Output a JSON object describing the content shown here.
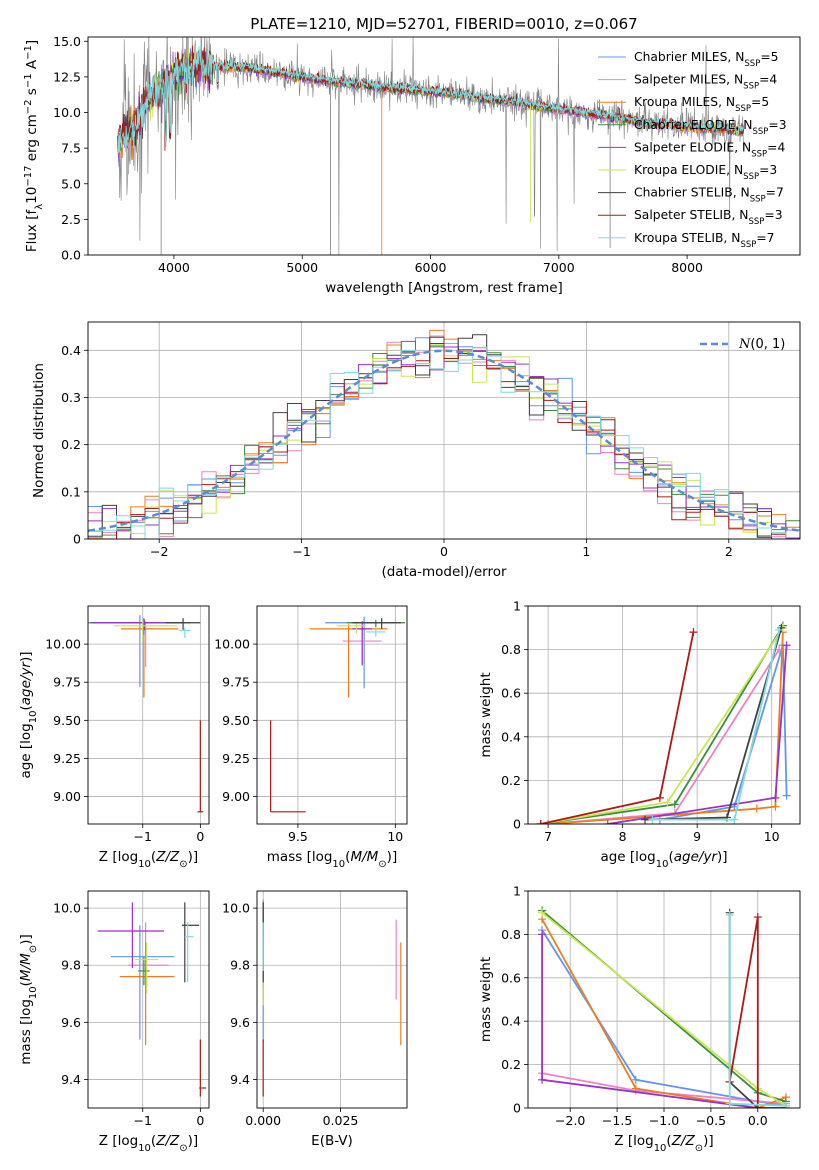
{
  "figure": {
    "title": "PLATE=1210, MJD=52701, FIBERID=0010, z=0.067"
  },
  "colors": {
    "spectrum_data": "#808080",
    "grid": "#b0b0b0",
    "normal_curve": "#5b8bd4"
  },
  "models": [
    {
      "name": "Chabrier MILES",
      "nssp": "5",
      "color": "#6495ed"
    },
    {
      "name": "Salpeter MILES",
      "nssp": "4",
      "color": "#ee82c8"
    },
    {
      "name": "Kroupa MILES",
      "nssp": "5",
      "color": "#ee7d1e"
    },
    {
      "name": "Chabrier ELODIE",
      "nssp": "3",
      "color": "#3a8f3a"
    },
    {
      "name": "Salpeter ELODIE",
      "nssp": "4",
      "color": "#9932cc"
    },
    {
      "name": "Kroupa ELODIE",
      "nssp": "3",
      "color": "#c8e650"
    },
    {
      "name": "Chabrier STELIB",
      "nssp": "7",
      "color": "#404040"
    },
    {
      "name": "Salpeter STELIB",
      "nssp": "3",
      "color": "#b01818"
    },
    {
      "name": "Kroupa STELIB",
      "nssp": "7",
      "color": "#7edcdc"
    }
  ],
  "chart_data": [
    {
      "id": "spectrum",
      "type": "line",
      "xlabel": "wavelength [Angstrom, rest frame]",
      "ylabel": "Flux [f_λ10^-17 erg cm^-2 s^-1 A^-1]",
      "xlim": [
        3330,
        8880
      ],
      "ylim": [
        0,
        15.3
      ],
      "xticks": [
        4000,
        5000,
        6000,
        7000,
        8000
      ],
      "yticks": [
        0.0,
        2.5,
        5.0,
        7.5,
        10.0,
        12.5,
        15.0
      ],
      "grid": false,
      "legend": "top-right",
      "x_range": [
        3560,
        8440
      ],
      "continuum_points": [
        [
          3560,
          8.0
        ],
        [
          3700,
          9.0
        ],
        [
          3800,
          11.0
        ],
        [
          3900,
          11.6
        ],
        [
          4000,
          12.7
        ],
        [
          4100,
          13.2
        ],
        [
          4200,
          13.3
        ],
        [
          4400,
          13.2
        ],
        [
          4600,
          13.1
        ],
        [
          4800,
          12.8
        ],
        [
          5000,
          12.5
        ],
        [
          5200,
          12.2
        ],
        [
          5400,
          12.0
        ],
        [
          5600,
          11.8
        ],
        [
          5800,
          11.6
        ],
        [
          6000,
          11.5
        ],
        [
          6200,
          11.3
        ],
        [
          6400,
          11.0
        ],
        [
          6600,
          10.8
        ],
        [
          6800,
          10.5
        ],
        [
          7000,
          10.2
        ],
        [
          7200,
          10.0
        ],
        [
          7400,
          9.7
        ],
        [
          7600,
          9.4
        ],
        [
          7800,
          9.2
        ],
        [
          8000,
          9.0
        ],
        [
          8200,
          8.9
        ],
        [
          8440,
          8.7
        ]
      ]
    },
    {
      "id": "residuals",
      "type": "histogram",
      "xlabel": "(data-model)/error",
      "ylabel": "Normed distribution",
      "xlim": [
        -2.5,
        2.5
      ],
      "ylim": [
        0,
        0.46
      ],
      "xticks": [
        -2,
        -1,
        0,
        1,
        2
      ],
      "yticks": [
        0.0,
        0.1,
        0.2,
        0.3,
        0.4
      ],
      "grid": true,
      "legend": "top-right",
      "curve_label": "N(0,1)",
      "bin_width": 0.1
    },
    {
      "id": "age_vs_Z",
      "type": "scatter",
      "xlabel": "Z [log10(Z/Z⊙)]",
      "ylabel": "age  [log10(age/yr)]",
      "xlim": [
        -1.95,
        0.15
      ],
      "ylim": [
        8.82,
        10.25
      ],
      "xticks": [
        -1,
        0
      ],
      "yticks": [
        9.0,
        9.25,
        9.5,
        9.75,
        10.0
      ],
      "ytick_labels": [
        "9.00",
        "9.25",
        "9.50",
        "9.75",
        "10.00"
      ],
      "grid": true,
      "points": [
        {
          "model": 0,
          "x": -1.05,
          "y": 10.14,
          "xerr": [
            0.9,
            0.8
          ],
          "yerr": [
            0.42,
            0.05
          ]
        },
        {
          "model": 1,
          "x": -0.95,
          "y": 10.1,
          "xerr": [
            0.1,
            0.15
          ],
          "yerr": [
            0.25,
            0.05
          ]
        },
        {
          "model": 2,
          "x": -0.98,
          "y": 10.1,
          "xerr": [
            0.4,
            0.6
          ],
          "yerr": [
            0.45,
            0.04
          ]
        },
        {
          "model": 3,
          "x": -0.97,
          "y": 10.14,
          "xerr": [
            0.95,
            0.8
          ],
          "yerr": [
            0.05,
            0.02
          ]
        },
        {
          "model": 4,
          "x": -0.98,
          "y": 10.14,
          "xerr": [
            0.9,
            0.7
          ],
          "yerr": [
            0.08,
            0.03
          ]
        },
        {
          "model": 5,
          "x": -1.0,
          "y": 10.12,
          "xerr": [
            0.5,
            0.6
          ],
          "yerr": [
            0.1,
            0.03
          ]
        },
        {
          "model": 6,
          "x": -0.3,
          "y": 10.14,
          "xerr": [
            0.3,
            0.3
          ],
          "yerr": [
            0.05,
            0.03
          ]
        },
        {
          "model": 7,
          "x": 0.0,
          "y": 8.9,
          "xerr": [
            0.05,
            0.05
          ],
          "yerr": [
            0.0,
            0.6
          ]
        },
        {
          "model": 8,
          "x": -0.27,
          "y": 10.09,
          "xerr": [
            0.1,
            0.1
          ],
          "yerr": [
            0.05,
            0.02
          ]
        }
      ]
    },
    {
      "id": "age_vs_mass",
      "type": "scatter",
      "xlabel": "mass [log10(M/M⊙)]",
      "ylabel": "",
      "xlim": [
        9.29,
        10.06
      ],
      "ylim": [
        8.82,
        10.25
      ],
      "xticks": [
        9.5,
        10.0
      ],
      "yticks": [
        9.0,
        9.25,
        9.5,
        9.75,
        10.0
      ],
      "ytick_labels": [
        "9.00",
        "9.25",
        "9.50",
        "9.75",
        "10.00"
      ],
      "grid": true,
      "points": [
        {
          "model": 0,
          "x": 9.84,
          "y": 10.14,
          "xerr": [
            0.2,
            0.15
          ],
          "yerr": [
            0.43,
            0.04
          ]
        },
        {
          "model": 1,
          "x": 9.83,
          "y": 10.02,
          "xerr": [
            0.1,
            0.1
          ],
          "yerr": [
            0.15,
            0.1
          ]
        },
        {
          "model": 2,
          "x": 9.76,
          "y": 10.1,
          "xerr": [
            0.2,
            0.2
          ],
          "yerr": [
            0.45,
            0.03
          ]
        },
        {
          "model": 3,
          "x": 9.9,
          "y": 10.14,
          "xerr": [
            0.15,
            0.15
          ],
          "yerr": [
            0.03,
            0.02
          ]
        },
        {
          "model": 4,
          "x": 9.83,
          "y": 10.1,
          "xerr": [
            0.05,
            0.05
          ],
          "yerr": [
            0.24,
            0.05
          ]
        },
        {
          "model": 5,
          "x": 9.8,
          "y": 10.12,
          "xerr": [
            0.1,
            0.05
          ],
          "yerr": [
            0.05,
            0.03
          ]
        },
        {
          "model": 6,
          "x": 9.93,
          "y": 10.14,
          "xerr": [
            0.15,
            0.1
          ],
          "yerr": [
            0.04,
            0.03
          ]
        },
        {
          "model": 7,
          "x": 9.36,
          "y": 8.9,
          "xerr": [
            0.0,
            0.18
          ],
          "yerr": [
            0.0,
            0.6
          ]
        },
        {
          "model": 8,
          "x": 9.9,
          "y": 10.08,
          "xerr": [
            0.05,
            0.05
          ],
          "yerr": [
            0.03,
            0.02
          ]
        }
      ]
    },
    {
      "id": "weight_vs_age",
      "type": "line",
      "xlabel": "age  [log10(age/yr)]",
      "ylabel": "mass weight",
      "xlim": [
        6.73,
        10.38
      ],
      "ylim": [
        0,
        1.0
      ],
      "xticks": [
        7,
        8,
        9,
        10
      ],
      "yticks": [
        0.0,
        0.2,
        0.4,
        0.6,
        0.8,
        1.0
      ],
      "grid": true,
      "series": [
        {
          "model": 0,
          "x": [
            8.5,
            9.5,
            10.15,
            10.2
          ],
          "y": [
            0.02,
            0.08,
            0.82,
            0.13
          ]
        },
        {
          "model": 1,
          "x": [
            7.0,
            8.7,
            10.1
          ],
          "y": [
            0.0,
            0.05,
            0.8
          ]
        },
        {
          "model": 2,
          "x": [
            7.0,
            9.8,
            10.05,
            10.15
          ],
          "y": [
            0.0,
            0.07,
            0.08,
            0.88
          ]
        },
        {
          "model": 3,
          "x": [
            6.9,
            8.7,
            10.15
          ],
          "y": [
            0.0,
            0.09,
            0.91
          ]
        },
        {
          "model": 4,
          "x": [
            7.8,
            10.05,
            10.2
          ],
          "y": [
            0.0,
            0.12,
            0.82
          ]
        },
        {
          "model": 5,
          "x": [
            6.9,
            8.6,
            10.15
          ],
          "y": [
            0.0,
            0.1,
            0.9
          ]
        },
        {
          "model": 6,
          "x": [
            8.3,
            9.4,
            10.13
          ],
          "y": [
            0.02,
            0.03,
            0.9
          ]
        },
        {
          "model": 7,
          "x": [
            6.9,
            8.5,
            8.95
          ],
          "y": [
            0.0,
            0.12,
            0.88
          ]
        },
        {
          "model": 8,
          "x": [
            8.4,
            9.5,
            10.1
          ],
          "y": [
            0.02,
            0.02,
            0.89
          ]
        }
      ]
    },
    {
      "id": "mass_vs_Z",
      "type": "scatter",
      "xlabel": "Z [log10(Z/Z⊙)]",
      "ylabel": "mass [log10(M/M⊙)]",
      "xlim": [
        -1.95,
        0.15
      ],
      "ylim": [
        9.3,
        10.06
      ],
      "xticks": [
        -1,
        0
      ],
      "yticks": [
        9.4,
        9.6,
        9.8,
        10.0
      ],
      "ytick_labels": [
        "9.4",
        "9.6",
        "9.8",
        "10.0"
      ],
      "grid": true,
      "points": [
        {
          "model": 0,
          "x": -1.05,
          "y": 9.83,
          "xerr": [
            0.5,
            0.6
          ],
          "yerr": [
            0.29,
            0.11
          ]
        },
        {
          "model": 1,
          "x": -0.95,
          "y": 9.8,
          "xerr": [
            0.3,
            0.4
          ],
          "yerr": [
            0.1,
            0.15
          ]
        },
        {
          "model": 2,
          "x": -0.95,
          "y": 9.76,
          "xerr": [
            0.45,
            0.5
          ],
          "yerr": [
            0.24,
            0.12
          ]
        },
        {
          "model": 3,
          "x": -0.98,
          "y": 9.78,
          "xerr": [
            0.1,
            0.1
          ],
          "yerr": [
            0.05,
            0.05
          ]
        },
        {
          "model": 4,
          "x": -1.18,
          "y": 9.92,
          "xerr": [
            0.6,
            0.55
          ],
          "yerr": [
            0.13,
            0.1
          ]
        },
        {
          "model": 5,
          "x": -0.93,
          "y": 9.82,
          "xerr": [
            0.2,
            0.2
          ],
          "yerr": [
            0.12,
            0.06
          ]
        },
        {
          "model": 6,
          "x": -0.27,
          "y": 9.94,
          "xerr": [
            0.05,
            0.25
          ],
          "yerr": [
            0.2,
            0.08
          ]
        },
        {
          "model": 7,
          "x": 0.0,
          "y": 9.37,
          "xerr": [
            0.02,
            0.1
          ],
          "yerr": [
            0.03,
            0.17
          ]
        },
        {
          "model": 8,
          "x": -0.22,
          "y": 9.9,
          "xerr": [
            0.05,
            0.1
          ],
          "yerr": [
            0.16,
            0.05
          ]
        }
      ]
    },
    {
      "id": "mass_vs_ebv",
      "type": "scatter",
      "xlabel": "E(B-V)",
      "ylabel": "",
      "xlim": [
        -0.002,
        0.0465
      ],
      "ylim": [
        9.3,
        10.06
      ],
      "xticks": [
        0.0,
        0.025
      ],
      "xtick_labels": [
        "0.000",
        "0.025"
      ],
      "yticks": [
        9.4,
        9.6,
        9.8,
        10.0
      ],
      "ytick_labels": [
        "9.4",
        "9.6",
        "9.8",
        "10.0"
      ],
      "grid": true,
      "points": [
        {
          "model": 0,
          "x": 0.0,
          "y": 9.83,
          "xerr": [
            0,
            0
          ],
          "yerr": [
            0.3,
            0.2
          ]
        },
        {
          "model": 1,
          "x": 0.043,
          "y": 9.8,
          "xerr": [
            0,
            0
          ],
          "yerr": [
            0.12,
            0.16
          ]
        },
        {
          "model": 2,
          "x": 0.0445,
          "y": 9.76,
          "xerr": [
            0,
            0
          ],
          "yerr": [
            0.24,
            0.12
          ]
        },
        {
          "model": 3,
          "x": 0.0,
          "y": 9.78,
          "xerr": [
            0,
            0
          ],
          "yerr": [
            0.1,
            0.1
          ]
        },
        {
          "model": 4,
          "x": 0.0,
          "y": 9.92,
          "xerr": [
            0,
            0
          ],
          "yerr": [
            0.2,
            0.1
          ]
        },
        {
          "model": 5,
          "x": 0.0,
          "y": 9.82,
          "xerr": [
            0,
            0
          ],
          "yerr": [
            0.16,
            0.08
          ]
        },
        {
          "model": 6,
          "x": 0.0,
          "y": 9.94,
          "xerr": [
            0,
            0
          ],
          "yerr": [
            0.2,
            0.08
          ]
        },
        {
          "model": 7,
          "x": 0.0,
          "y": 9.4,
          "xerr": [
            0,
            0
          ],
          "yerr": [
            0.06,
            0.14
          ]
        },
        {
          "model": 8,
          "x": 0.0,
          "y": 9.9,
          "xerr": [
            0,
            0
          ],
          "yerr": [
            0.12,
            0.05
          ]
        }
      ]
    },
    {
      "id": "weight_vs_Z",
      "type": "line",
      "xlabel": "Z [log10(Z/Z⊙)]",
      "ylabel": "mass weight",
      "xlim": [
        -2.45,
        0.45
      ],
      "ylim": [
        0,
        1.0
      ],
      "xticks": [
        -2.0,
        -1.5,
        -1.0,
        -0.5,
        0.0
      ],
      "xtick_labels": [
        "−2.0",
        "−1.5",
        "−1.0",
        "−0.5",
        "0.0"
      ],
      "yticks": [
        0.0,
        0.2,
        0.4,
        0.6,
        0.8,
        1.0
      ],
      "grid": true,
      "series": [
        {
          "model": 0,
          "x": [
            -2.3,
            -1.3,
            0.0,
            0.3
          ],
          "y": [
            0.82,
            0.13,
            0.03,
            0.01
          ]
        },
        {
          "model": 1,
          "x": [
            -2.3,
            -1.3,
            0.3
          ],
          "y": [
            0.16,
            0.08,
            0.02
          ]
        },
        {
          "model": 2,
          "x": [
            -2.3,
            -1.3,
            0.0,
            0.3
          ],
          "y": [
            0.87,
            0.09,
            0.0,
            0.05
          ]
        },
        {
          "model": 3,
          "x": [
            -2.3,
            0.0,
            0.3
          ],
          "y": [
            0.91,
            0.07,
            0.03
          ]
        },
        {
          "model": 4,
          "x": [
            -2.3,
            -2.3,
            0.0
          ],
          "y": [
            0.8,
            0.13,
            0.0
          ]
        },
        {
          "model": 5,
          "x": [
            -2.3,
            0.0,
            0.3
          ],
          "y": [
            0.9,
            0.09,
            0.01
          ]
        },
        {
          "model": 6,
          "x": [
            -0.3,
            -0.3,
            0.0,
            0.3
          ],
          "y": [
            0.9,
            0.12,
            0.0,
            0.0
          ]
        },
        {
          "model": 7,
          "x": [
            -0.3,
            0.0,
            0.0
          ],
          "y": [
            0.12,
            0.88,
            0.0
          ]
        },
        {
          "model": 8,
          "x": [
            -0.3,
            -0.3,
            0.3
          ],
          "y": [
            0.89,
            0.02,
            0.01
          ]
        }
      ]
    }
  ]
}
